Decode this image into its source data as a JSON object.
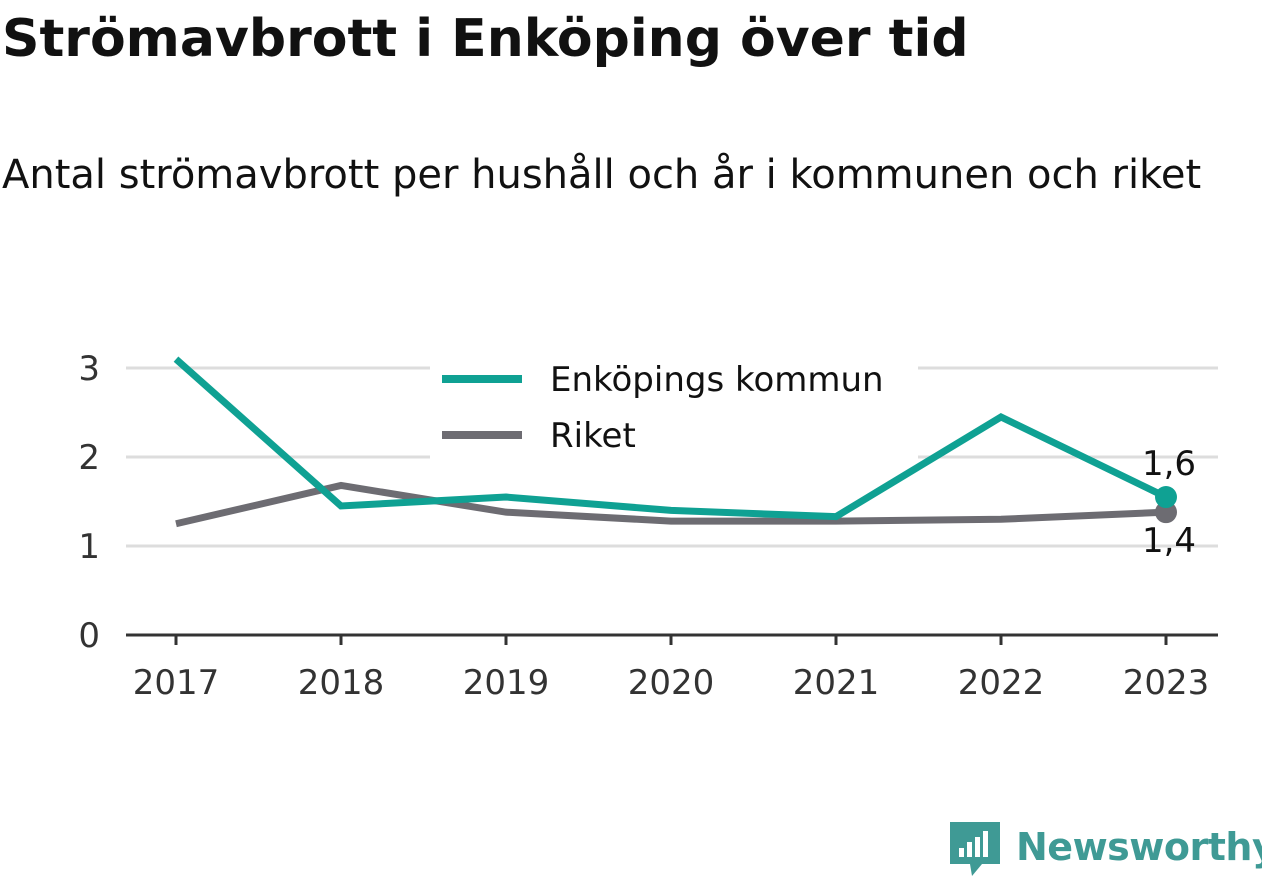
{
  "title": "Strömavbrott i Enköping över tid",
  "subtitle": "Antal strömavbrott per hushåll och år i kommunen och riket",
  "brand": {
    "name": "Newsworthy",
    "logo_icon": "newsworthy-bar-chart-icon",
    "color": "#3f9a95"
  },
  "chart_data": {
    "type": "line",
    "x": [
      "2017",
      "2018",
      "2019",
      "2020",
      "2021",
      "2022",
      "2023"
    ],
    "ylim": [
      0,
      3.3
    ],
    "yticks": [
      0,
      1,
      2,
      3
    ],
    "grid": true,
    "legend": "top-center",
    "xlabel": "",
    "ylabel": "",
    "series": [
      {
        "name": "Enköpings kommun",
        "color": "#0fa193",
        "values": [
          3.1,
          1.45,
          1.55,
          1.4,
          1.33,
          2.45,
          1.55
        ],
        "end_label": "1,6"
      },
      {
        "name": "Riket",
        "color": "#6d6c72",
        "values": [
          1.25,
          1.68,
          1.38,
          1.28,
          1.28,
          1.3,
          1.38
        ],
        "end_label": "1,4"
      }
    ]
  }
}
